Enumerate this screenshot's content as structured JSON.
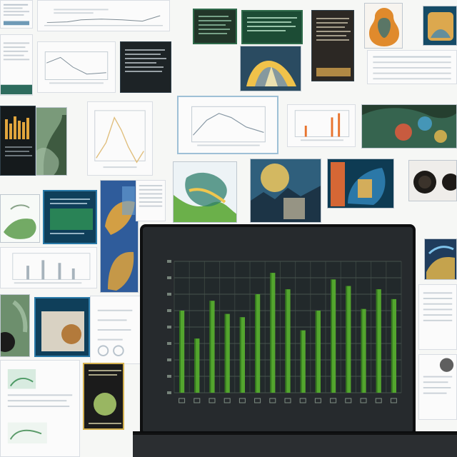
{
  "monitor": {
    "title_text": "",
    "xlabel_text": "",
    "ylabel_text": "",
    "colors": {
      "background": "#262a2d",
      "grid": "#4a5750",
      "bars": "#58b02f",
      "bar_dark": "#2d6d1b",
      "axis_text": "#8fa093"
    }
  },
  "chart_data": {
    "type": "bar",
    "title": "",
    "xlabel": "",
    "ylabel": "",
    "categories": [
      "",
      "",
      "",
      "",
      "",
      "",
      "",
      "",
      "",
      "",
      "",
      "",
      "",
      "",
      ""
    ],
    "values": [
      5.0,
      3.3,
      5.6,
      4.8,
      4.6,
      6.0,
      7.3,
      6.3,
      3.8,
      5.0,
      6.9,
      6.5,
      5.1,
      6.3,
      5.7
    ],
    "ylim": [
      0,
      8
    ],
    "grid": true,
    "legend": "none"
  },
  "icons": {
    "chart_icon": "bar-chart-icon"
  }
}
